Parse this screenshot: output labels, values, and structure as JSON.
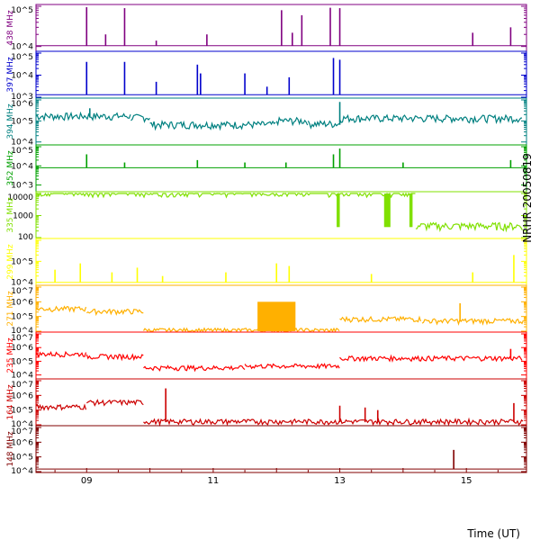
{
  "side_label": "NRHR 20050819",
  "x_axis": {
    "title": "Time (UT)",
    "ticks": [
      "09",
      "11",
      "13",
      "15"
    ]
  },
  "chart_data": [
    {
      "type": "line",
      "name": "438 MHz",
      "color": "#800080",
      "log_scale": true,
      "tick_labels": [
        "10^5",
        "10^4"
      ],
      "ylim": [
        8000,
        100000
      ],
      "baseline": 10500,
      "spikes": [
        {
          "t": 9.0,
          "v": 95000
        },
        {
          "t": 9.3,
          "v": 20000
        },
        {
          "t": 9.6,
          "v": 90000
        },
        {
          "t": 10.1,
          "v": 14000
        },
        {
          "t": 10.9,
          "v": 20000
        },
        {
          "t": 12.08,
          "v": 80000
        },
        {
          "t": 12.25,
          "v": 22000
        },
        {
          "t": 12.4,
          "v": 60000
        },
        {
          "t": 12.85,
          "v": 92000
        },
        {
          "t": 13.0,
          "v": 90000
        },
        {
          "t": 15.1,
          "v": 22000
        },
        {
          "t": 15.7,
          "v": 30000
        }
      ]
    },
    {
      "type": "line",
      "name": "397 MHz",
      "color": "#0000cc",
      "log_scale": true,
      "tick_labels": [
        "10^5",
        "10^4",
        "10^3"
      ],
      "ylim": [
        1000,
        100000
      ],
      "baseline": 1300,
      "spikes": [
        {
          "t": 9.0,
          "v": 40000
        },
        {
          "t": 9.6,
          "v": 40000
        },
        {
          "t": 10.1,
          "v": 5000
        },
        {
          "t": 10.75,
          "v": 30000
        },
        {
          "t": 10.8,
          "v": 12000
        },
        {
          "t": 11.5,
          "v": 12000
        },
        {
          "t": 11.85,
          "v": 3000
        },
        {
          "t": 12.2,
          "v": 8000
        },
        {
          "t": 12.9,
          "v": 60000
        },
        {
          "t": 13.0,
          "v": 50000
        }
      ]
    },
    {
      "type": "line",
      "name": "394 MHz",
      "color": "#008080",
      "log_scale": true,
      "tick_labels": [
        "10^6",
        "10^5",
        "10^4"
      ],
      "ylim": [
        8000,
        1000000
      ],
      "levels": [
        {
          "t0": 8.2,
          "t1": 9.7,
          "v": 150000
        },
        {
          "t0": 9.7,
          "t1": 10.0,
          "v": 130000
        },
        {
          "t0": 10.0,
          "t1": 12.0,
          "v": 60000
        },
        {
          "t0": 12.0,
          "t1": 12.5,
          "v": 90000
        },
        {
          "t0": 12.5,
          "t1": 13.0,
          "v": 65000
        },
        {
          "t0": 13.0,
          "t1": 15.9,
          "v": 120000
        }
      ],
      "spikes": [
        {
          "t": 9.05,
          "v": 400000
        },
        {
          "t": 13.0,
          "v": 800000
        }
      ]
    },
    {
      "type": "line",
      "name": "352 MHz",
      "color": "#00a000",
      "log_scale": true,
      "tick_labels": [
        "10^5",
        "10^4",
        "10^3"
      ],
      "ylim": [
        500,
        100000
      ],
      "baseline": 8000,
      "spikes": [
        {
          "t": 9.0,
          "v": 40000
        },
        {
          "t": 9.6,
          "v": 15000
        },
        {
          "t": 10.75,
          "v": 20000
        },
        {
          "t": 11.5,
          "v": 15000
        },
        {
          "t": 12.15,
          "v": 15000
        },
        {
          "t": 12.9,
          "v": 40000
        },
        {
          "t": 13.0,
          "v": 80000
        },
        {
          "t": 14.0,
          "v": 15000
        },
        {
          "t": 15.7,
          "v": 20000
        }
      ]
    },
    {
      "type": "line",
      "name": "335 MHz",
      "color": "#80e000",
      "log_scale": true,
      "tick_labels": [
        "10000",
        "1000",
        "100"
      ],
      "ylim": [
        100,
        10000
      ],
      "levels": [
        {
          "t0": 8.2,
          "t1": 14.2,
          "v": 10000
        },
        {
          "t0": 14.2,
          "t1": 15.9,
          "v": 300
        }
      ],
      "blocks": [
        {
          "t0": 12.95,
          "t1": 13.0,
          "v": 300
        },
        {
          "t0": 13.7,
          "t1": 13.8,
          "v": 300
        },
        {
          "t0": 14.1,
          "t1": 14.15,
          "v": 300
        }
      ]
    },
    {
      "type": "line",
      "name": "299 MHz",
      "color": "#ffff00",
      "log_scale": true,
      "tick_labels": [
        "10^5",
        "10^4"
      ],
      "ylim": [
        8000,
        1000000
      ],
      "baseline": 10000,
      "spikes": [
        {
          "t": 8.5,
          "v": 40000
        },
        {
          "t": 8.9,
          "v": 80000
        },
        {
          "t": 9.4,
          "v": 30000
        },
        {
          "t": 9.8,
          "v": 50000
        },
        {
          "t": 10.2,
          "v": 20000
        },
        {
          "t": 11.2,
          "v": 30000
        },
        {
          "t": 12.0,
          "v": 80000
        },
        {
          "t": 12.2,
          "v": 60000
        },
        {
          "t": 13.5,
          "v": 25000
        },
        {
          "t": 15.1,
          "v": 30000
        },
        {
          "t": 15.75,
          "v": 200000
        }
      ]
    },
    {
      "type": "line",
      "name": "271 MHz",
      "color": "#ffb000",
      "log_scale": true,
      "tick_labels": [
        "10^7",
        "10^6",
        "10^5",
        "10^4"
      ],
      "ylim": [
        10000,
        10000000
      ],
      "levels": [
        {
          "t0": 8.2,
          "t1": 9.0,
          "v": 300000
        },
        {
          "t0": 9.0,
          "t1": 9.9,
          "v": 200000
        },
        {
          "t0": 9.9,
          "t1": 13.0,
          "v": 10000
        },
        {
          "t0": 13.0,
          "t1": 14.3,
          "v": 60000
        },
        {
          "t0": 14.3,
          "t1": 15.9,
          "v": 45000
        }
      ],
      "blocks": [
        {
          "t0": 11.7,
          "t1": 12.3,
          "v": 1000000
        }
      ],
      "spikes": [
        {
          "t": 14.9,
          "v": 800000
        }
      ]
    },
    {
      "type": "line",
      "name": "235 MHz",
      "color": "#ff0000",
      "log_scale": true,
      "tick_labels": [
        "10^7",
        "10^6",
        "10^5",
        "10^4"
      ],
      "ylim": [
        6000,
        10000000
      ],
      "levels": [
        {
          "t0": 8.2,
          "t1": 9.0,
          "v": 300000
        },
        {
          "t0": 9.0,
          "t1": 9.9,
          "v": 200000
        },
        {
          "t0": 9.9,
          "t1": 11.5,
          "v": 30000
        },
        {
          "t0": 11.5,
          "t1": 13.0,
          "v": 40000
        },
        {
          "t0": 13.0,
          "t1": 15.9,
          "v": 150000
        }
      ],
      "spikes": [
        {
          "t": 15.7,
          "v": 800000
        }
      ]
    },
    {
      "type": "line",
      "name": "164 MHz",
      "color": "#cc0000",
      "log_scale": true,
      "tick_labels": [
        "10^7",
        "10^6",
        "10^5",
        "10^4"
      ],
      "ylim": [
        10000,
        10000000
      ],
      "levels": [
        {
          "t0": 8.2,
          "t1": 9.0,
          "v": 150000
        },
        {
          "t0": 9.0,
          "t1": 9.9,
          "v": 300000
        },
        {
          "t0": 9.9,
          "t1": 15.9,
          "v": 15000
        }
      ],
      "spikes": [
        {
          "t": 10.25,
          "v": 3000000
        },
        {
          "t": 13.0,
          "v": 200000
        },
        {
          "t": 13.4,
          "v": 150000
        },
        {
          "t": 13.6,
          "v": 100000
        },
        {
          "t": 15.75,
          "v": 300000
        }
      ]
    },
    {
      "type": "line",
      "name": "148 MHz",
      "color": "#800000",
      "log_scale": true,
      "tick_labels": [
        "10^7",
        "10^6",
        "10^5",
        "10^4"
      ],
      "ylim": [
        10000,
        10000000
      ],
      "baseline": 15000,
      "spikes": [
        {
          "t": 14.8,
          "v": 300000
        }
      ]
    }
  ]
}
